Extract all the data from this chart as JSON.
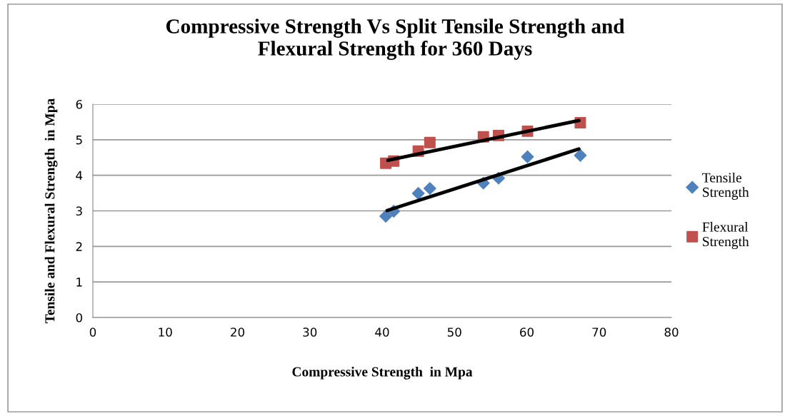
{
  "chart_data": {
    "type": "scatter",
    "title": "Compressive Strength Vs Split Tensile Strength and\nFlexural Strength for 360 Days",
    "xlabel": "Compressive Strength  in Mpa",
    "ylabel": "Tensile and Flexural Strength  in Mpa",
    "x": [
      40.5,
      41.6,
      45.0,
      46.6,
      54.0,
      56.1,
      60.1,
      67.4
    ],
    "series": [
      {
        "name": "Tensile\nStrength",
        "color": "#4f81bd",
        "marker": "diamond",
        "values": [
          2.85,
          2.99,
          3.49,
          3.63,
          3.78,
          3.92,
          4.52,
          4.56
        ]
      },
      {
        "name": "Flexural\nStrength",
        "color": "#c0504d",
        "marker": "square",
        "values": [
          4.34,
          4.4,
          4.68,
          4.92,
          5.08,
          5.12,
          5.24,
          5.48
        ]
      },
      {
        "type": "line",
        "color": "#000000",
        "x": [
          40.7,
          67.2
        ],
        "values": [
          3.01,
          4.74
        ]
      },
      {
        "type": "line",
        "color": "#000000",
        "x": [
          40.8,
          67.2
        ],
        "values": [
          4.42,
          5.54
        ]
      }
    ],
    "xlim": [
      0,
      80
    ],
    "xticks": [
      0,
      10,
      20,
      30,
      40,
      50,
      60,
      70,
      80
    ],
    "ylim": [
      0,
      6
    ],
    "yticks": [
      0,
      1,
      2,
      3,
      4,
      5,
      6
    ],
    "grid": "y",
    "legend": "right"
  }
}
